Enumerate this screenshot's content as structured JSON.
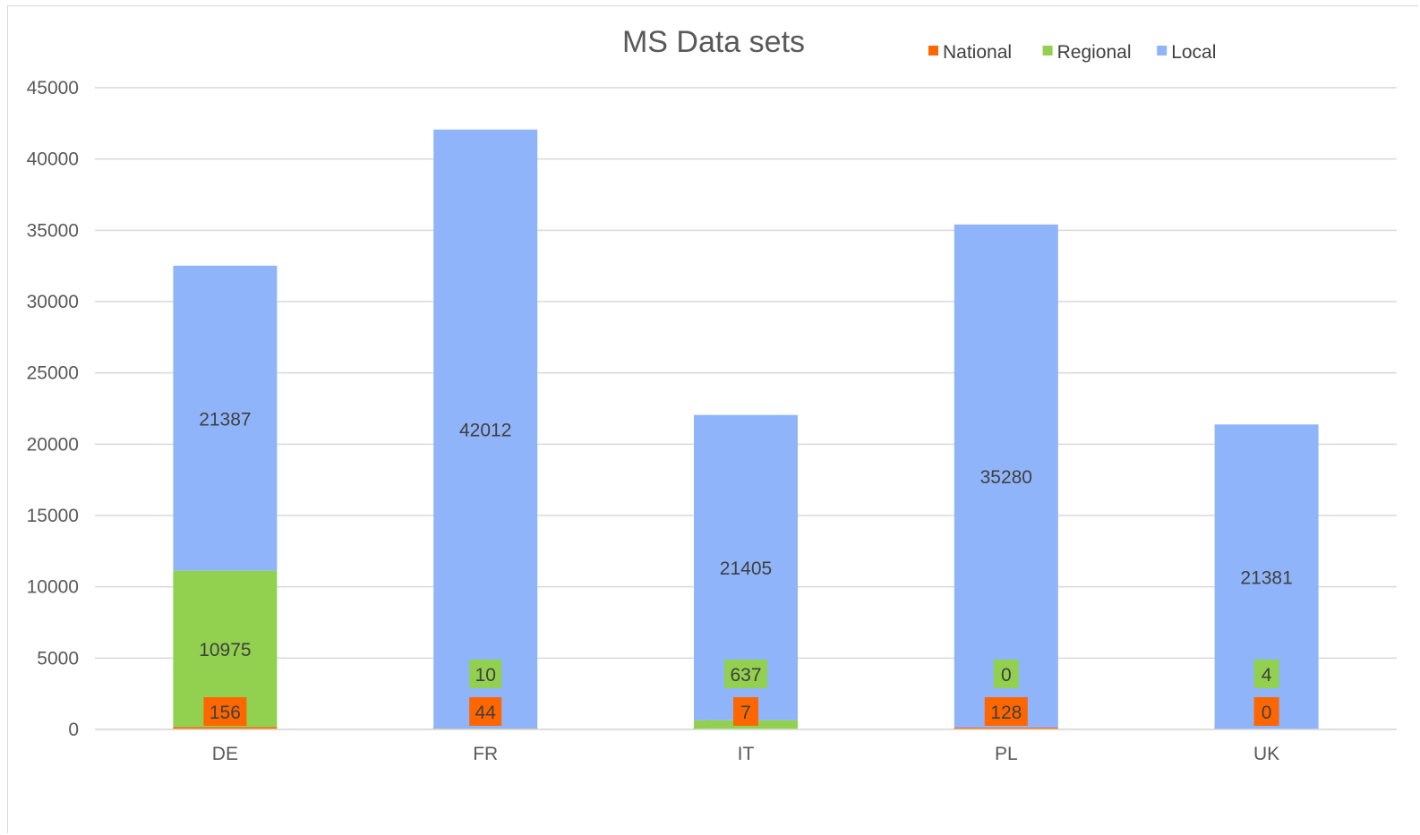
{
  "chart_data": {
    "type": "bar",
    "stacked": true,
    "title": "MS Data sets",
    "categories": [
      "DE",
      "FR",
      "IT",
      "PL",
      "UK"
    ],
    "series": [
      {
        "name": "National",
        "color": "#ff6600",
        "values": [
          156,
          44,
          7,
          128,
          0
        ]
      },
      {
        "name": "Regional",
        "color": "#92d050",
        "values": [
          10975,
          10,
          637,
          0,
          4
        ]
      },
      {
        "name": "Local",
        "color": "#8fb4f9",
        "values": [
          21387,
          42012,
          21405,
          35280,
          21381
        ]
      }
    ],
    "ylim": [
      0,
      45000
    ],
    "y_ticks": [
      "0",
      "5000",
      "10000",
      "15000",
      "20000",
      "25000",
      "30000",
      "35000",
      "40000",
      "45000"
    ],
    "grid": true,
    "legend_position": "top-right",
    "xlabel": "",
    "ylabel": ""
  }
}
